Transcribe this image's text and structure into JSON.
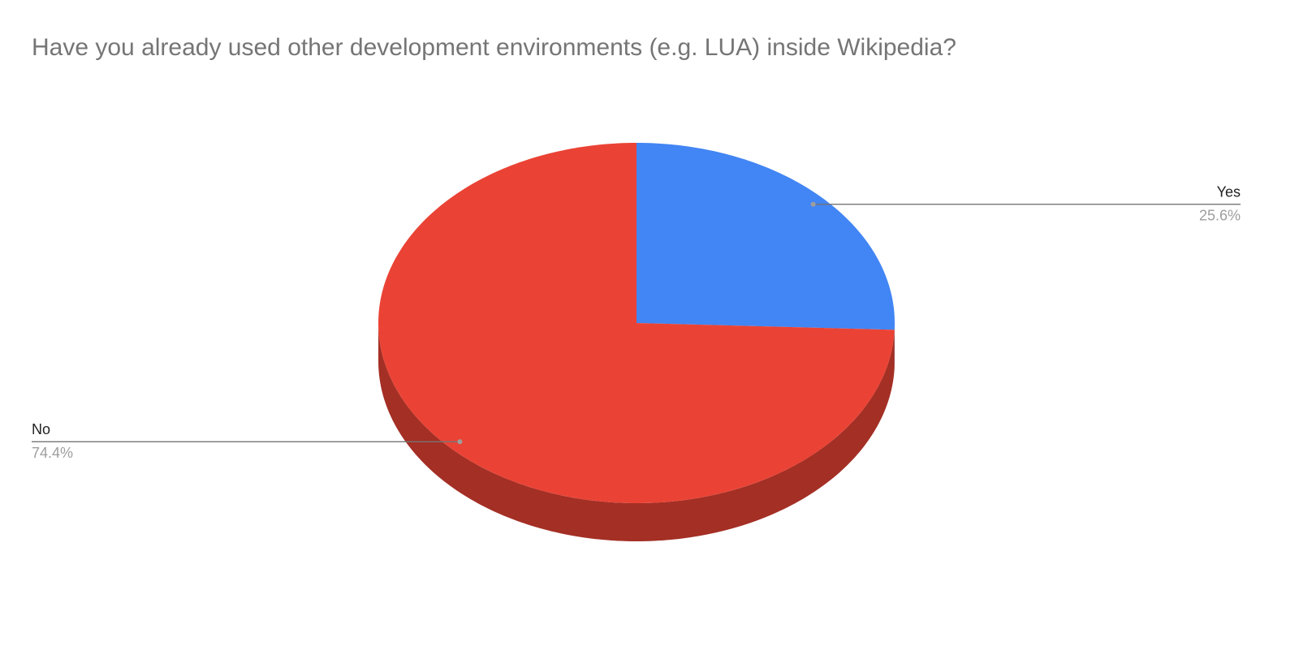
{
  "chart_data": {
    "type": "pie",
    "title": "Have you already used other development environments (e.g. LUA) inside Wikipedia?",
    "categories": [
      "Yes",
      "No"
    ],
    "values": [
      25.6,
      74.4
    ],
    "value_labels": [
      "25.6%",
      "74.4%"
    ],
    "colors": [
      "#4285f4",
      "#ea4335"
    ]
  }
}
